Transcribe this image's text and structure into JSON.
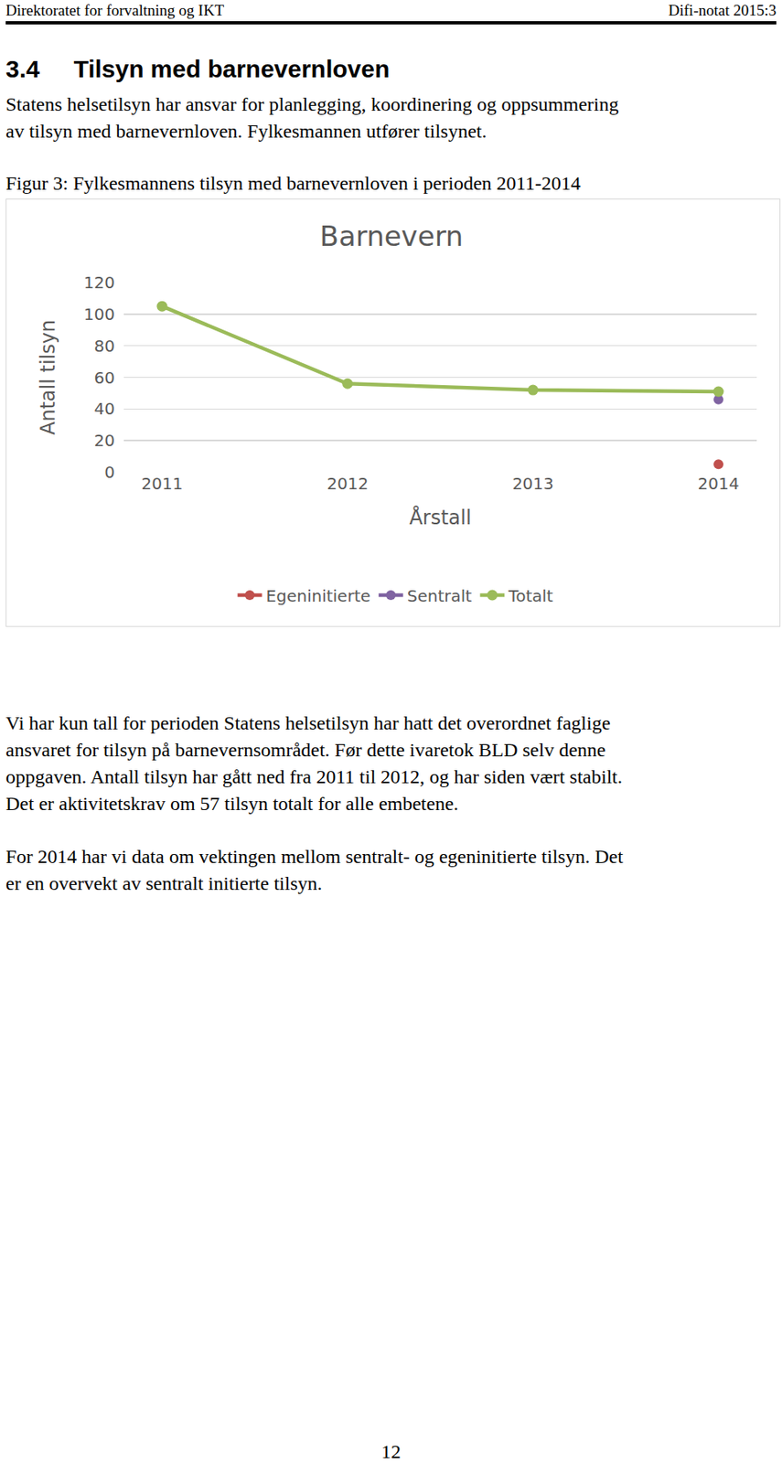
{
  "header": {
    "left": "Direktoratet for forvaltning og IKT",
    "right": "Difi-notat 2015:3"
  },
  "section": {
    "number": "3.4",
    "title": "Tilsyn med barnevernloven"
  },
  "intro_paragraph": [
    "Statens helsetilsyn har ansvar for planlegging, koordinering og oppsummering",
    "av tilsyn med barnevernloven. Fylkesmannen utfører tilsynet."
  ],
  "figure_caption": "Figur 3: Fylkesmannens tilsyn med barnevernloven i perioden 2011-2014",
  "chart_data": {
    "type": "line",
    "title": "Barnevern",
    "x_label": "Årstall",
    "y_label": "Antall tilsyn",
    "categories": [
      "2011",
      "2012",
      "2013",
      "2014"
    ],
    "series": [
      {
        "name": "Egeninitierte",
        "color": "#c0504d",
        "values": [
          null,
          null,
          null,
          5
        ]
      },
      {
        "name": "Sentralt",
        "color": "#8064a2",
        "values": [
          null,
          null,
          null,
          46
        ]
      },
      {
        "name": "Totalt",
        "color": "#9bbb59",
        "values": [
          105,
          56,
          52,
          51
        ]
      }
    ],
    "ylim": [
      0,
      120
    ],
    "yticks": [
      0,
      20,
      40,
      60,
      80,
      100,
      120
    ],
    "grid": true,
    "legend": "bottom",
    "marker": "circle"
  },
  "paragraphs": [
    [
      "Vi har kun tall for perioden Statens helsetilsyn har hatt det overordnet faglige",
      "ansvaret for tilsyn på barnevernsområdet. Før dette ivaretok BLD selv denne",
      "oppgaven. Antall tilsyn har gått ned fra 2011 til 2012, og har siden vært stabilt.",
      "Det er aktivitetskrav om 57 tilsyn totalt for alle embetene."
    ],
    [
      "For 2014 har vi data om vektingen mellom sentralt- og egeninitierte tilsyn. Det",
      "er en overvekt av sentralt initierte tilsyn."
    ]
  ],
  "page_number": 12
}
